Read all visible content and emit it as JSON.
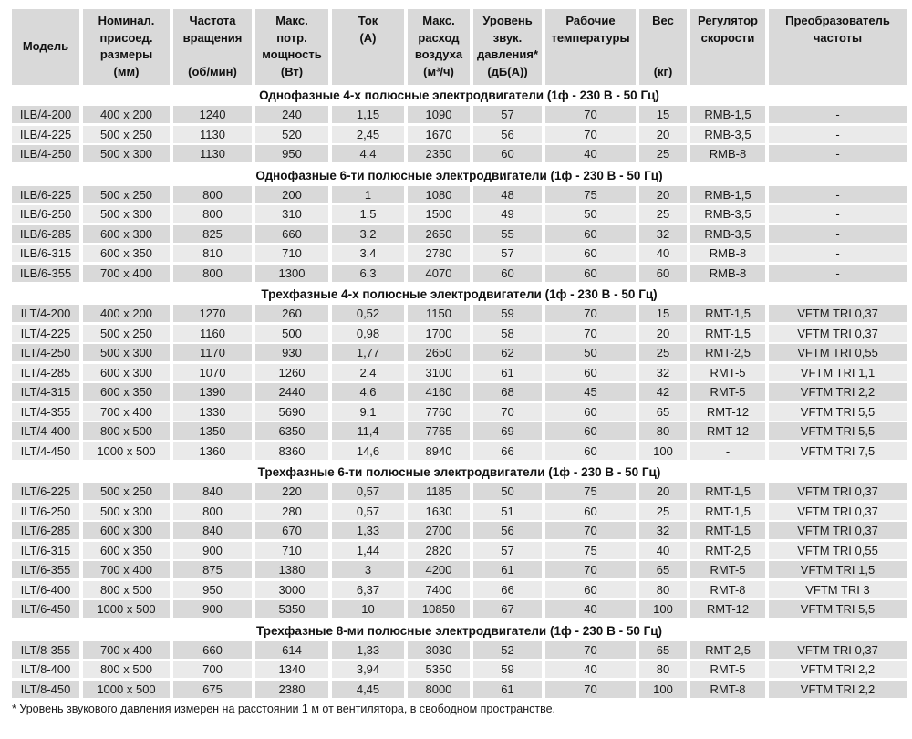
{
  "colors": {
    "header_bg": "#d9d9d9",
    "row_dark": "#d9d9d9",
    "row_light": "#eaeaea",
    "text": "#1a1a1a"
  },
  "table": {
    "columns": [
      "Модель",
      "Номинал.\nприсоед.\nразмеры\n(мм)",
      "Частота\nвращения\n\n(об/мин)",
      "Макс.\nпотр.\nмощность\n(Вт)",
      "Ток\n(А)",
      "Макс.\nрасход\nвоздуха\n(м³/ч)",
      "Уровень\nзвук.\nдавления*\n(дБ(А))",
      "Рабочие\nтемпературы",
      "Вес\n\n\n(кг)",
      "Регулятор\nскорости",
      "Преобразователь\nчастоты"
    ],
    "column_keys": [
      "model",
      "dimensions",
      "rpm",
      "power",
      "current",
      "airflow",
      "sound-level",
      "temperature",
      "weight",
      "speed-regulator",
      "frequency-converter"
    ],
    "sections": [
      {
        "title": "Однофазные 4-х полюсные электродвигатели (1ф - 230 В - 50 Гц)",
        "rows": [
          [
            "ILB/4-200",
            "400 x 200",
            "1240",
            "240",
            "1,15",
            "1090",
            "57",
            "70",
            "15",
            "RMB-1,5",
            "-"
          ],
          [
            "ILB/4-225",
            "500 x 250",
            "1130",
            "520",
            "2,45",
            "1670",
            "56",
            "70",
            "20",
            "RMB-3,5",
            "-"
          ],
          [
            "ILB/4-250",
            "500 x 300",
            "1130",
            "950",
            "4,4",
            "2350",
            "60",
            "40",
            "25",
            "RMB-8",
            "-"
          ]
        ]
      },
      {
        "title": "Однофазные 6-ти полюсные электродвигатели (1ф - 230 В - 50 Гц)",
        "rows": [
          [
            "ILB/6-225",
            "500 x 250",
            "800",
            "200",
            "1",
            "1080",
            "48",
            "75",
            "20",
            "RMB-1,5",
            "-"
          ],
          [
            "ILB/6-250",
            "500 x 300",
            "800",
            "310",
            "1,5",
            "1500",
            "49",
            "50",
            "25",
            "RMB-3,5",
            "-"
          ],
          [
            "ILB/6-285",
            "600 x 300",
            "825",
            "660",
            "3,2",
            "2650",
            "55",
            "60",
            "32",
            "RMB-3,5",
            "-"
          ],
          [
            "ILB/6-315",
            "600 x 350",
            "810",
            "710",
            "3,4",
            "2780",
            "57",
            "60",
            "40",
            "RMB-8",
            "-"
          ],
          [
            "ILB/6-355",
            "700 x 400",
            "800",
            "1300",
            "6,3",
            "4070",
            "60",
            "60",
            "60",
            "RMB-8",
            "-"
          ]
        ]
      },
      {
        "title": "Трехфазные 4-х полюсные электродвигатели (1ф - 230 В - 50 Гц)",
        "rows": [
          [
            "ILT/4-200",
            "400 x 200",
            "1270",
            "260",
            "0,52",
            "1150",
            "59",
            "70",
            "15",
            "RMT-1,5",
            "VFTM TRI 0,37"
          ],
          [
            "ILT/4-225",
            "500 x 250",
            "1160",
            "500",
            "0,98",
            "1700",
            "58",
            "70",
            "20",
            "RMT-1,5",
            "VFTM TRI 0,37"
          ],
          [
            "ILT/4-250",
            "500 x 300",
            "1170",
            "930",
            "1,77",
            "2650",
            "62",
            "50",
            "25",
            "RMT-2,5",
            "VFTM TRI 0,55"
          ],
          [
            "ILT/4-285",
            "600 x 300",
            "1070",
            "1260",
            "2,4",
            "3100",
            "61",
            "60",
            "32",
            "RMT-5",
            "VFTM TRI 1,1"
          ],
          [
            "ILT/4-315",
            "600 x 350",
            "1390",
            "2440",
            "4,6",
            "4160",
            "68",
            "45",
            "42",
            "RMT-5",
            "VFTM TRI 2,2"
          ],
          [
            "ILT/4-355",
            "700 x 400",
            "1330",
            "5690",
            "9,1",
            "7760",
            "70",
            "60",
            "65",
            "RMT-12",
            "VFTM TRI 5,5"
          ],
          [
            "ILT/4-400",
            "800 x 500",
            "1350",
            "6350",
            "11,4",
            "7765",
            "69",
            "60",
            "80",
            "RMT-12",
            "VFTM TRI 5,5"
          ],
          [
            "ILT/4-450",
            "1000 x 500",
            "1360",
            "8360",
            "14,6",
            "8940",
            "66",
            "60",
            "100",
            "-",
            "VFTM TRI 7,5"
          ]
        ]
      },
      {
        "title": "Трехфазные 6-ти полюсные электродвигатели (1ф - 230 В - 50 Гц)",
        "rows": [
          [
            "ILT/6-225",
            "500 x 250",
            "840",
            "220",
            "0,57",
            "1185",
            "50",
            "75",
            "20",
            "RMT-1,5",
            "VFTM TRI 0,37"
          ],
          [
            "ILT/6-250",
            "500 x 300",
            "800",
            "280",
            "0,57",
            "1630",
            "51",
            "60",
            "25",
            "RMT-1,5",
            "VFTM TRI 0,37"
          ],
          [
            "ILT/6-285",
            "600 x 300",
            "840",
            "670",
            "1,33",
            "2700",
            "56",
            "70",
            "32",
            "RMT-1,5",
            "VFTM TRI 0,37"
          ],
          [
            "ILT/6-315",
            "600 x 350",
            "900",
            "710",
            "1,44",
            "2820",
            "57",
            "75",
            "40",
            "RMT-2,5",
            "VFTM TRI 0,55"
          ],
          [
            "ILT/6-355",
            "700 x 400",
            "875",
            "1380",
            "3",
            "4200",
            "61",
            "70",
            "65",
            "RMT-5",
            "VFTM TRI 1,5"
          ],
          [
            "ILT/6-400",
            "800 x 500",
            "950",
            "3000",
            "6,37",
            "7400",
            "66",
            "60",
            "80",
            "RMT-8",
            "VFTM TRI 3"
          ],
          [
            "ILT/6-450",
            "1000 x 500",
            "900",
            "5350",
            "10",
            "10850",
            "67",
            "40",
            "100",
            "RMT-12",
            "VFTM TRI 5,5"
          ]
        ]
      },
      {
        "title": "Трехфазные 8-ми полюсные электродвигатели (1ф - 230 В - 50 Гц)",
        "rows": [
          [
            "ILT/8-355",
            "700 x 400",
            "660",
            "614",
            "1,33",
            "3030",
            "52",
            "70",
            "65",
            "RMT-2,5",
            "VFTM TRI 0,37"
          ],
          [
            "ILT/8-400",
            "800 x 500",
            "700",
            "1340",
            "3,94",
            "5350",
            "59",
            "40",
            "80",
            "RMT-5",
            "VFTM TRI 2,2"
          ],
          [
            "ILT/8-450",
            "1000 x 500",
            "675",
            "2380",
            "4,45",
            "8000",
            "61",
            "70",
            "100",
            "RMT-8",
            "VFTM TRI 2,2"
          ]
        ]
      }
    ],
    "footnote": "* Уровень звукового давления измерен на расстоянии 1 м от вентилятора, в свободном пространстве."
  }
}
